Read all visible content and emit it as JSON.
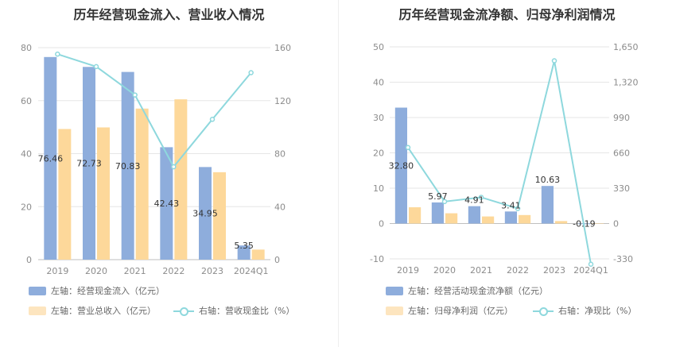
{
  "chart_data": [
    {
      "type": "bar",
      "title": "历年经营现金流入、营业收入情况",
      "categories": [
        "2019",
        "2020",
        "2021",
        "2022",
        "2023",
        "2024Q1"
      ],
      "series": [
        {
          "name": "左轴：经营现金流入（亿元）",
          "kind": "bar",
          "axis": "left",
          "color": "#8eaddc",
          "values": [
            76.46,
            72.73,
            70.83,
            42.43,
            34.95,
            5.35
          ],
          "labels": [
            "76.46",
            "72.73",
            "70.83",
            "42.43",
            "34.95",
            "5.35"
          ]
        },
        {
          "name": "左轴：营业总收入（亿元）",
          "kind": "bar",
          "axis": "left",
          "color": "#fdd89a",
          "values": [
            49.3,
            49.9,
            57.0,
            60.5,
            33.0,
            3.8
          ]
        },
        {
          "name": "右轴：营收现金比（%）",
          "kind": "line",
          "axis": "right",
          "color": "#8ed8dd",
          "values": [
            155.1,
            145.7,
            124.3,
            70.1,
            105.9,
            141.1
          ]
        }
      ],
      "y_left": {
        "min": 0,
        "max": 80,
        "ticks": [
          "0",
          "20",
          "40",
          "60",
          "80"
        ]
      },
      "y_right": {
        "min": 0,
        "max": 160,
        "ticks": [
          "0",
          "40",
          "80",
          "120",
          "160"
        ]
      }
    },
    {
      "type": "bar",
      "title": "历年经营现金流净额、归母净利润情况",
      "categories": [
        "2019",
        "2020",
        "2021",
        "2022",
        "2023",
        "2024Q1"
      ],
      "series": [
        {
          "name": "左轴：经营活动现金流净额（亿元）",
          "kind": "bar",
          "axis": "left",
          "color": "#8eaddc",
          "values": [
            32.8,
            5.97,
            4.91,
            3.41,
            10.63,
            -0.19
          ],
          "labels": [
            "32.80",
            "5.97",
            "4.91",
            "3.41",
            "10.63",
            "-0.19"
          ]
        },
        {
          "name": "左轴：归母净利润（亿元）",
          "kind": "bar",
          "axis": "left",
          "color": "#fdd89a",
          "values": [
            4.6,
            2.9,
            2.0,
            2.4,
            0.7,
            0.05
          ]
        },
        {
          "name": "右轴：净现比（%）",
          "kind": "line",
          "axis": "right",
          "color": "#8ed8dd",
          "values": [
            710,
            205,
            245,
            140,
            1520,
            -380
          ]
        }
      ],
      "y_left": {
        "min": -10,
        "max": 50,
        "ticks": [
          "-10",
          "0",
          "10",
          "20",
          "30",
          "40",
          "50"
        ]
      },
      "y_right": {
        "min": -330,
        "max": 1650,
        "ticks": [
          "-330",
          "0",
          "330",
          "660",
          "990",
          "1,320",
          "1,650"
        ]
      }
    }
  ]
}
